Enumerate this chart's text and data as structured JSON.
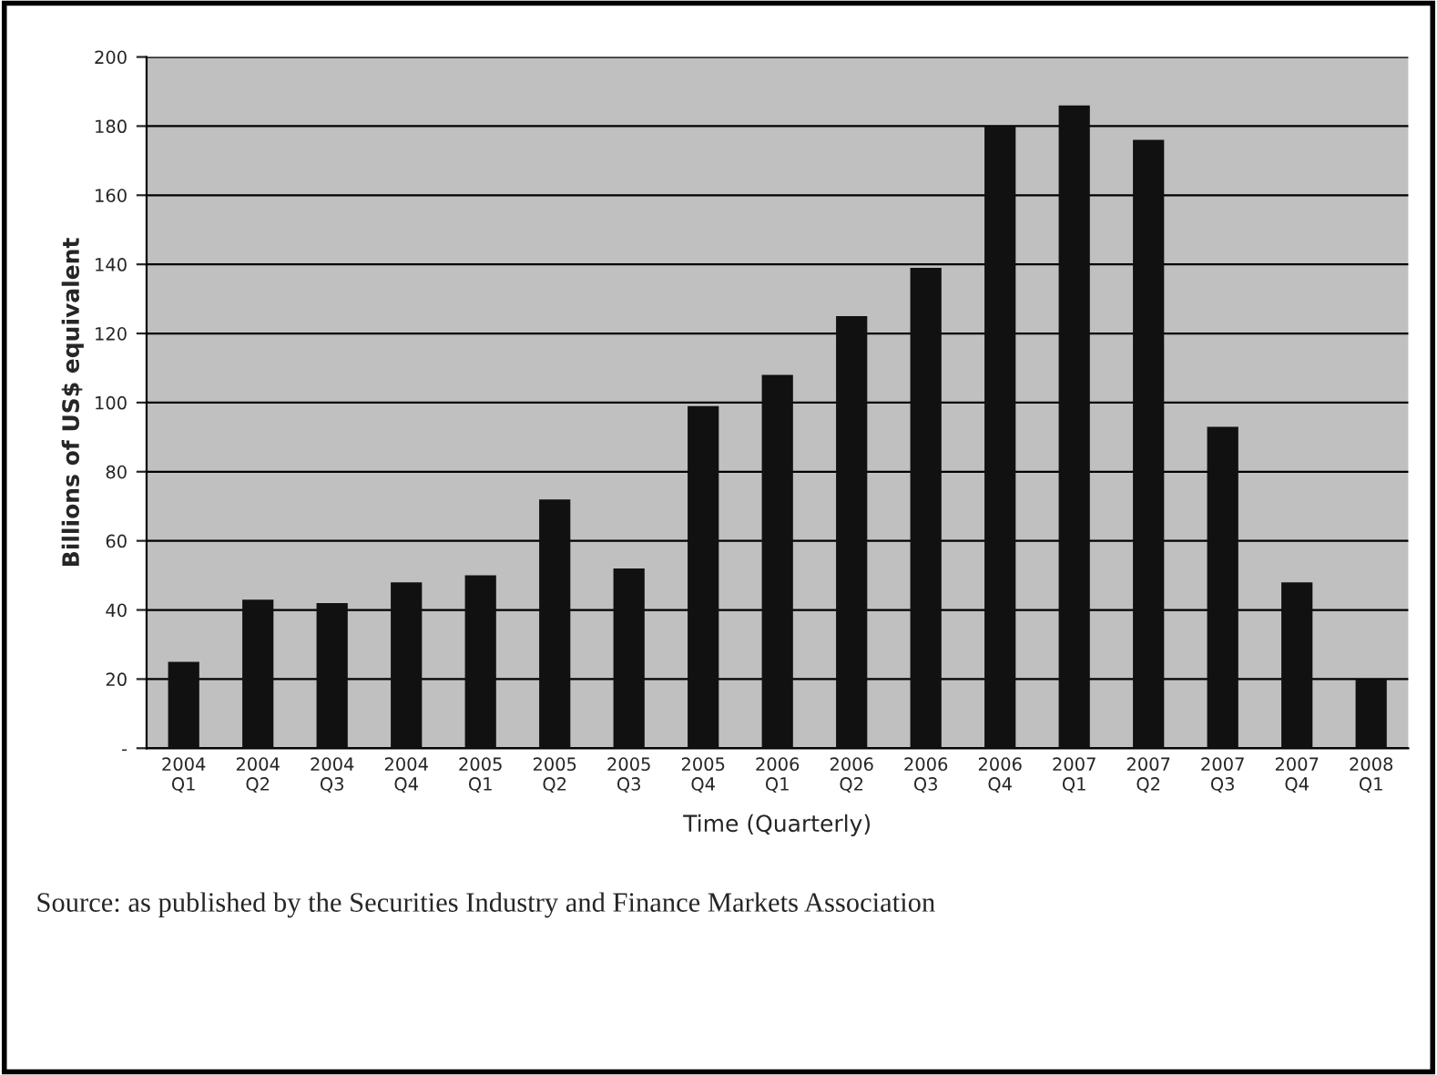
{
  "chart_data": {
    "type": "bar",
    "ylabel": "Billions of US$ equivalent",
    "xlabel": "Time (Quarterly)",
    "categories": [
      "2004\nQ1",
      "2004\nQ2",
      "2004\nQ3",
      "2004\nQ4",
      "2005\nQ1",
      "2005\nQ2",
      "2005\nQ3",
      "2005\nQ4",
      "2006\nQ1",
      "2006\nQ2",
      "2006\nQ3",
      "2006\nQ4",
      "2007\nQ1",
      "2007\nQ2",
      "2007\nQ3",
      "2007\nQ4",
      "2008\nQ1"
    ],
    "values": [
      25,
      43,
      42,
      48,
      50,
      72,
      52,
      99,
      108,
      125,
      139,
      180,
      186,
      176,
      93,
      48,
      20
    ],
    "color": "#111111",
    "ylim": [
      0,
      200
    ],
    "yticks": [
      {
        "value": 0,
        "label": "-"
      },
      20,
      40,
      60,
      80,
      100,
      120,
      140,
      160,
      180,
      200
    ],
    "grid": "y",
    "annotations": [
      "Source: as published by the Securities Industry and Finance Markets Association"
    ]
  }
}
